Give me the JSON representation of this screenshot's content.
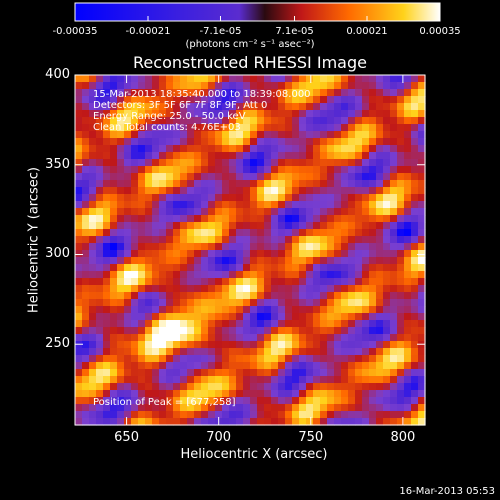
{
  "chart_data": {
    "type": "heatmap",
    "title": "Reconstructed RHESSI Image",
    "xlabel": "Heliocentric X (arcsec)",
    "ylabel": "Heliocentric Y (arcsec)",
    "xlim": [
      622,
      812
    ],
    "ylim": [
      205,
      400
    ],
    "xticks": [
      650,
      700,
      750,
      800
    ],
    "yticks": [
      250,
      300,
      350,
      400
    ],
    "colorbar": {
      "ticks": [
        "-0.00035",
        "-0.00021",
        "-7.1e-05",
        "7.1e-05",
        "0.00021",
        "0.00035"
      ],
      "range": [
        -0.00035,
        0.00035
      ],
      "units": "(photons cm⁻² s⁻¹ asec⁻²)"
    },
    "annotations": [
      "15-Mar-2013 18:35:40.000 to 18:39:08.000",
      "Detectors: 3F 5F 6F 7F 8F 9F, Att 0",
      "Energy Range: 25.0 - 50.0 keV",
      "Clean     Total counts: 4.76E+03"
    ],
    "peak_label": "Position of Peak = [677,258]",
    "peak": [
      677,
      258
    ],
    "peak_value": 0.00035,
    "ridge_angle_deg": 58,
    "ridge_spacing_arcsec": 38,
    "colormap": [
      "#0000ff",
      "#5a2ccf",
      "#7a3fd0",
      "#c01818",
      "#ff6a00",
      "#ffd21a",
      "#ffffff"
    ]
  },
  "footer": {
    "timestamp": "16-Mar-2013 05:53"
  }
}
